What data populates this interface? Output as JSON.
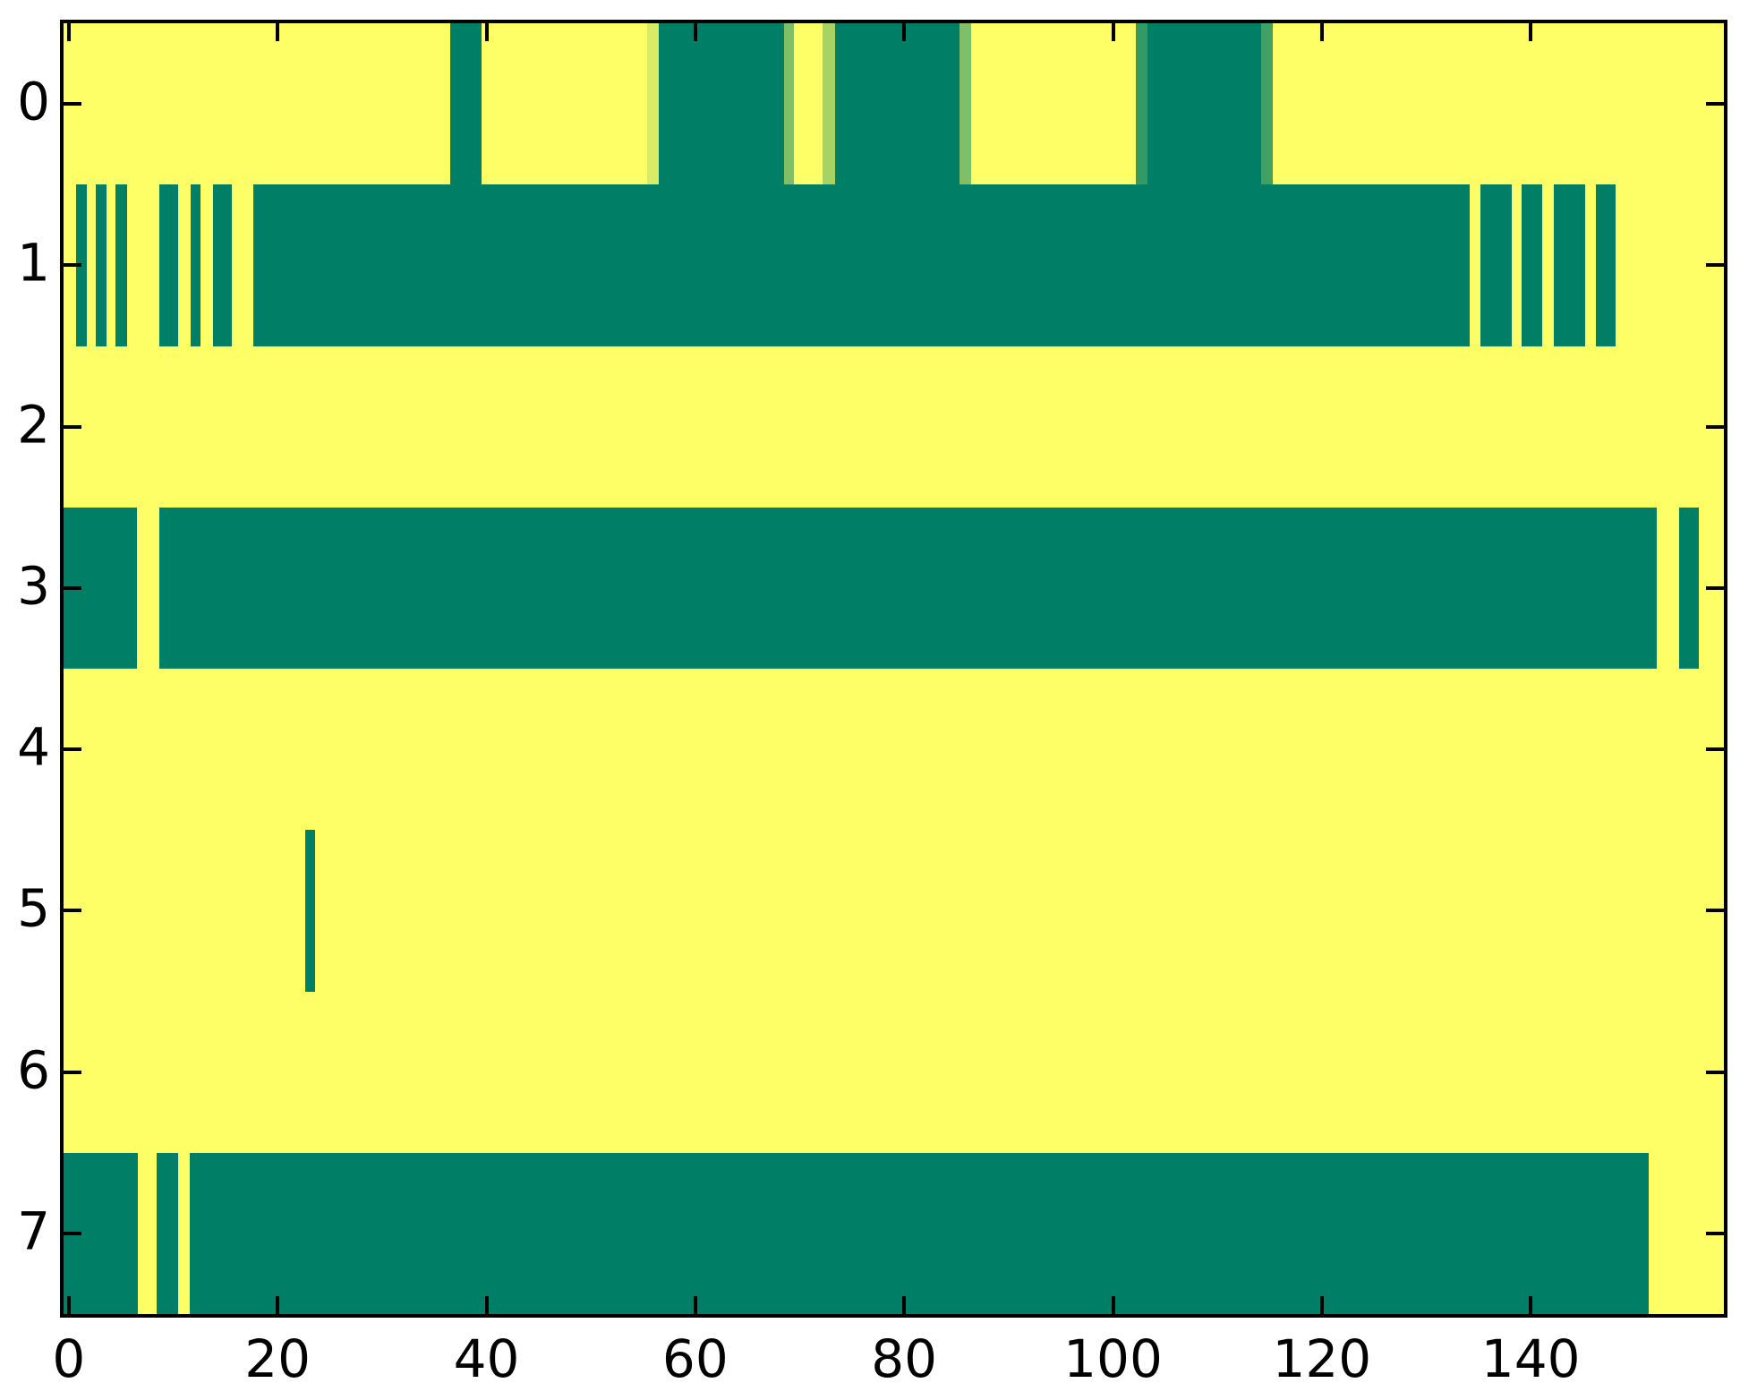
{
  "chart_data": {
    "type": "heatmap",
    "title": "",
    "xlabel": "",
    "ylabel": "",
    "colormap": "summer",
    "grid": false,
    "legend": "none",
    "xlim": [
      -0.5,
      158.5
    ],
    "n_rows": 8,
    "n_cols": 159,
    "x_tick_values": [
      0,
      20,
      40,
      60,
      80,
      100,
      120,
      140
    ],
    "x_tick_labels": [
      "0",
      "20",
      "40",
      "60",
      "80",
      "100",
      "120",
      "140"
    ],
    "y_tick_values": [
      0,
      1,
      2,
      3,
      4,
      5,
      6,
      7
    ],
    "y_tick_labels": [
      "0",
      "1",
      "2",
      "3",
      "4",
      "5",
      "6",
      "7"
    ],
    "palette": {
      "high": "#feff66",
      "low": "#007f66",
      "v085": "#d8ec66",
      "v065": "#a6d366",
      "v050": "#80bf66",
      "v025": "#40a066",
      "v020": "#339966"
    },
    "value_map": {
      "high": 1.0,
      "low": 0.0,
      "v085": 0.85,
      "v065": 0.65,
      "v050": 0.5,
      "v025": 0.25,
      "v020": 0.2
    },
    "rows": [
      {
        "y": 0,
        "segments": [
          {
            "x0": -0.5,
            "x1": 36.5,
            "c": "high"
          },
          {
            "x0": 36.5,
            "x1": 39.5,
            "c": "low"
          },
          {
            "x0": 39.5,
            "x1": 55.4,
            "c": "high"
          },
          {
            "x0": 55.4,
            "x1": 56.5,
            "c": "v085"
          },
          {
            "x0": 56.5,
            "x1": 68.5,
            "c": "low"
          },
          {
            "x0": 68.5,
            "x1": 69.4,
            "c": "v050"
          },
          {
            "x0": 69.4,
            "x1": 72.2,
            "c": "high"
          },
          {
            "x0": 72.2,
            "x1": 73.4,
            "c": "v065"
          },
          {
            "x0": 73.4,
            "x1": 85.3,
            "c": "low"
          },
          {
            "x0": 85.3,
            "x1": 86.4,
            "c": "v050"
          },
          {
            "x0": 86.4,
            "x1": 102.2,
            "c": "high"
          },
          {
            "x0": 102.2,
            "x1": 103.3,
            "c": "v020"
          },
          {
            "x0": 103.3,
            "x1": 114.2,
            "c": "low"
          },
          {
            "x0": 114.2,
            "x1": 115.3,
            "c": "v025"
          },
          {
            "x0": 115.3,
            "x1": 158.5,
            "c": "high"
          }
        ]
      },
      {
        "y": 1,
        "segments": [
          {
            "x0": -0.5,
            "x1": 0.7,
            "c": "high"
          },
          {
            "x0": 0.7,
            "x1": 1.7,
            "c": "low"
          },
          {
            "x0": 1.7,
            "x1": 2.6,
            "c": "high"
          },
          {
            "x0": 2.6,
            "x1": 3.6,
            "c": "low"
          },
          {
            "x0": 3.6,
            "x1": 4.5,
            "c": "high"
          },
          {
            "x0": 4.5,
            "x1": 5.6,
            "c": "low"
          },
          {
            "x0": 5.6,
            "x1": 8.7,
            "c": "high"
          },
          {
            "x0": 8.7,
            "x1": 10.5,
            "c": "low"
          },
          {
            "x0": 10.5,
            "x1": 11.7,
            "c": "high"
          },
          {
            "x0": 11.7,
            "x1": 12.6,
            "c": "low"
          },
          {
            "x0": 12.6,
            "x1": 13.8,
            "c": "high"
          },
          {
            "x0": 13.8,
            "x1": 15.6,
            "c": "low"
          },
          {
            "x0": 15.6,
            "x1": 17.7,
            "c": "high"
          },
          {
            "x0": 17.7,
            "x1": 134.2,
            "c": "low"
          },
          {
            "x0": 134.2,
            "x1": 135.2,
            "c": "high"
          },
          {
            "x0": 135.2,
            "x1": 138.2,
            "c": "low"
          },
          {
            "x0": 138.2,
            "x1": 139.1,
            "c": "high"
          },
          {
            "x0": 139.1,
            "x1": 141.1,
            "c": "low"
          },
          {
            "x0": 141.1,
            "x1": 142.2,
            "c": "high"
          },
          {
            "x0": 142.2,
            "x1": 145.2,
            "c": "low"
          },
          {
            "x0": 145.2,
            "x1": 146.2,
            "c": "high"
          },
          {
            "x0": 146.2,
            "x1": 148.1,
            "c": "low"
          },
          {
            "x0": 148.1,
            "x1": 158.5,
            "c": "high"
          }
        ]
      },
      {
        "y": 2,
        "segments": [
          {
            "x0": -0.5,
            "x1": 158.5,
            "c": "high"
          }
        ]
      },
      {
        "y": 3,
        "segments": [
          {
            "x0": -0.5,
            "x1": 6.5,
            "c": "low"
          },
          {
            "x0": 6.5,
            "x1": 8.7,
            "c": "high"
          },
          {
            "x0": 8.7,
            "x1": 152.1,
            "c": "low"
          },
          {
            "x0": 152.1,
            "x1": 154.2,
            "c": "high"
          },
          {
            "x0": 154.2,
            "x1": 156.1,
            "c": "low"
          },
          {
            "x0": 156.1,
            "x1": 158.5,
            "c": "high"
          }
        ]
      },
      {
        "y": 4,
        "segments": [
          {
            "x0": -0.5,
            "x1": 158.5,
            "c": "high"
          }
        ]
      },
      {
        "y": 5,
        "segments": [
          {
            "x0": -0.5,
            "x1": 22.6,
            "c": "high"
          },
          {
            "x0": 22.6,
            "x1": 23.6,
            "c": "low"
          },
          {
            "x0": 23.6,
            "x1": 158.5,
            "c": "high"
          }
        ]
      },
      {
        "y": 6,
        "segments": [
          {
            "x0": -0.5,
            "x1": 158.5,
            "c": "high"
          }
        ]
      },
      {
        "y": 7,
        "segments": [
          {
            "x0": -0.5,
            "x1": 6.6,
            "c": "low"
          },
          {
            "x0": 6.6,
            "x1": 8.4,
            "c": "high"
          },
          {
            "x0": 8.4,
            "x1": 10.5,
            "c": "low"
          },
          {
            "x0": 10.5,
            "x1": 11.6,
            "c": "high"
          },
          {
            "x0": 11.6,
            "x1": 151.3,
            "c": "low"
          },
          {
            "x0": 151.3,
            "x1": 158.5,
            "c": "high"
          }
        ]
      }
    ]
  },
  "layout_note": "ticks drawn inward on all four sides, black 4px frame"
}
